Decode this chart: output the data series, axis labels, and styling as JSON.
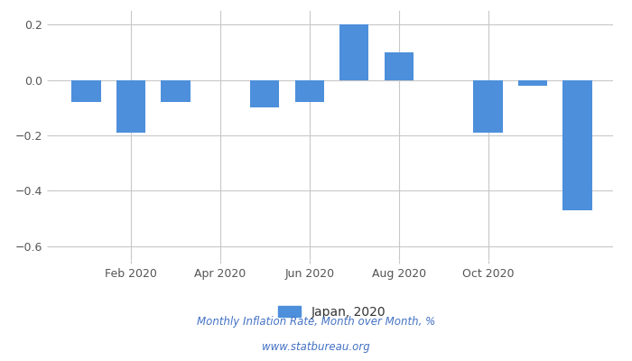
{
  "months_count": 12,
  "values": [
    -0.08,
    -0.19,
    -0.08,
    0.0,
    -0.1,
    -0.08,
    0.2,
    0.1,
    0.0,
    -0.19,
    -0.02,
    -0.47
  ],
  "x_tick_positions": [
    1,
    3,
    5,
    7,
    9
  ],
  "x_tick_labels": [
    "Feb 2020",
    "Apr 2020",
    "Jun 2020",
    "Aug 2020",
    "Oct 2020"
  ],
  "bar_color": "#4d8fdb",
  "ylim": [
    -0.65,
    0.25
  ],
  "yticks": [
    0.2,
    0.0,
    -0.2,
    -0.4,
    -0.6
  ],
  "legend_label": "Japan, 2020",
  "footnote_line1": "Monthly Inflation Rate, Month over Month, %",
  "footnote_line2": "www.statbureau.org",
  "background_color": "#ffffff",
  "grid_color": "#c8c8c8",
  "figsize": [
    7.0,
    4.0
  ],
  "dpi": 100
}
